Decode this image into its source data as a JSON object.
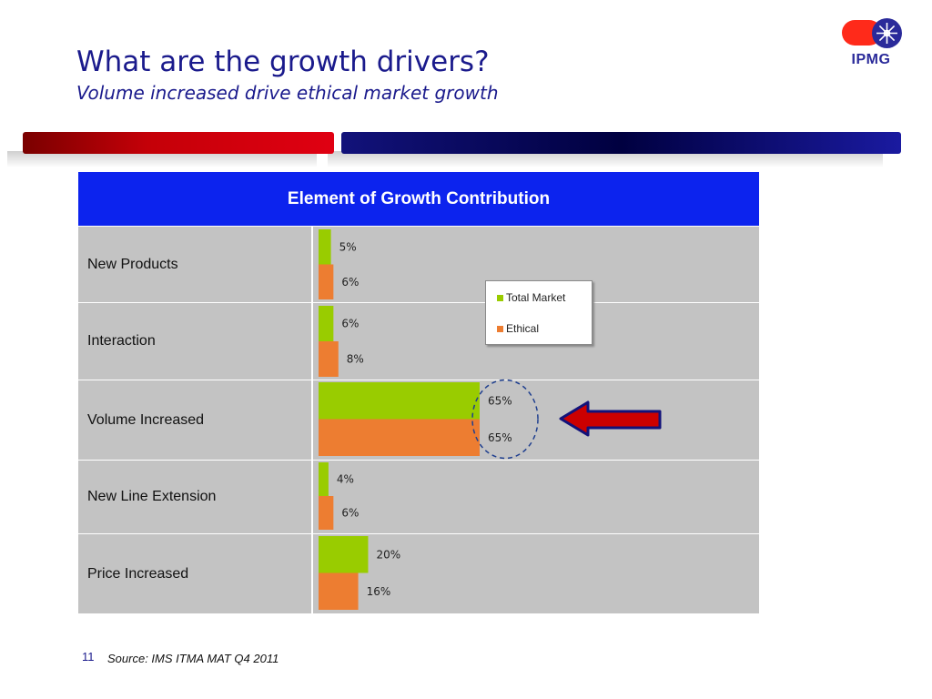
{
  "slide": {
    "title": "What are the growth drivers?",
    "subtitle": "Volume increased drive ethical market growth",
    "logo_text": "IPMG",
    "page_number": "11",
    "source": "Source: IMS ITMA MAT Q4 2011"
  },
  "colors": {
    "title": "#1a1a8c",
    "header_bg": "#0c23ee",
    "row_bg": "#c3c3c3",
    "total_market": "#99cc00",
    "ethical": "#ed7d31",
    "arrow_fill": "#cc0000",
    "arrow_outline": "#12127a",
    "highlight_circle": "#1f3f8f"
  },
  "chart_data": {
    "type": "bar",
    "orientation": "horizontal",
    "header": "Element of Growth Contribution",
    "categories": [
      "New Products",
      "Interaction",
      "Volume Increased",
      "New Line Extension",
      "Price Increased"
    ],
    "series": [
      {
        "name": "Total Market",
        "values": [
          5,
          6,
          65,
          4,
          20
        ],
        "labels": [
          "5%",
          "6%",
          "65%",
          "4%",
          "20%"
        ],
        "color": "#99cc00"
      },
      {
        "name": "Ethical",
        "values": [
          6,
          8,
          65,
          6,
          16
        ],
        "labels": [
          "6%",
          "8%",
          "65%",
          "6%",
          "16%"
        ],
        "color": "#ed7d31"
      }
    ],
    "xlim": [
      0,
      65
    ],
    "unit": "%",
    "legend_position": "top-right",
    "highlight_category": "Volume Increased",
    "grid": false
  }
}
